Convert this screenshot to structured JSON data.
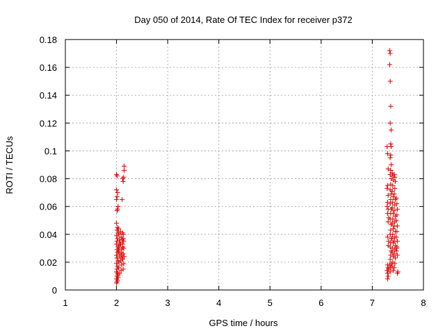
{
  "chart_data": {
    "type": "scatter",
    "title": "Day 050 of 2014, Rate Of TEC Index for receiver p372",
    "xlabel": "GPS time / hours",
    "ylabel": "ROTI / TECUs",
    "xlim": [
      1,
      8
    ],
    "ylim": [
      0,
      0.18
    ],
    "x_ticks": [
      1,
      2,
      3,
      4,
      5,
      6,
      7,
      8
    ],
    "y_ticks": [
      0,
      0.02,
      0.04,
      0.06,
      0.08,
      0.1,
      0.12,
      0.14,
      0.16,
      0.18
    ],
    "x_tick_labels": [
      "1",
      "2",
      "3",
      "4",
      "5",
      "6",
      "7",
      "8"
    ],
    "y_tick_labels": [
      "0",
      "0.02",
      "0.04",
      "0.06",
      "0.08",
      "0.1",
      "0.12",
      "0.14",
      "0.16",
      "0.18"
    ],
    "grid": true,
    "marker": "plus",
    "marker_color": "#e00000",
    "series": [
      {
        "points": [
          [
            2.0,
            0.083
          ],
          [
            2.01,
            0.082
          ],
          [
            2.0,
            0.072
          ],
          [
            2.02,
            0.07
          ],
          [
            2.01,
            0.067
          ],
          [
            2.0,
            0.065
          ],
          [
            2.03,
            0.06
          ],
          [
            2.02,
            0.058
          ],
          [
            2.01,
            0.057
          ],
          [
            2.0,
            0.048
          ],
          [
            2.02,
            0.045
          ],
          [
            2.01,
            0.043
          ],
          [
            2.03,
            0.041
          ],
          [
            2.0,
            0.039
          ],
          [
            2.02,
            0.037
          ],
          [
            2.01,
            0.035
          ],
          [
            2.0,
            0.033
          ],
          [
            2.03,
            0.031
          ],
          [
            2.01,
            0.029
          ],
          [
            2.02,
            0.027
          ],
          [
            2.0,
            0.025
          ],
          [
            2.01,
            0.023
          ],
          [
            2.03,
            0.021
          ],
          [
            2.0,
            0.019
          ],
          [
            2.02,
            0.017
          ],
          [
            2.01,
            0.015
          ],
          [
            2.0,
            0.013
          ],
          [
            2.03,
            0.011
          ],
          [
            2.01,
            0.01
          ],
          [
            2.0,
            0.008
          ],
          [
            2.02,
            0.007
          ],
          [
            2.01,
            0.006
          ],
          [
            2.0,
            0.005
          ],
          [
            2.03,
            0.009
          ],
          [
            2.02,
            0.012
          ],
          [
            2.04,
            0.044
          ],
          [
            2.05,
            0.04
          ],
          [
            2.06,
            0.036
          ],
          [
            2.05,
            0.032
          ],
          [
            2.04,
            0.028
          ],
          [
            2.06,
            0.024
          ],
          [
            2.05,
            0.02
          ],
          [
            2.04,
            0.016
          ],
          [
            2.06,
            0.012
          ],
          [
            2.05,
            0.03
          ],
          [
            2.07,
            0.034
          ],
          [
            2.06,
            0.026
          ],
          [
            2.08,
            0.042
          ],
          [
            2.09,
            0.038
          ],
          [
            2.08,
            0.033
          ],
          [
            2.1,
            0.029
          ],
          [
            2.09,
            0.025
          ],
          [
            2.08,
            0.021
          ],
          [
            2.1,
            0.018
          ],
          [
            2.09,
            0.014
          ],
          [
            2.11,
            0.023
          ],
          [
            2.1,
            0.027
          ],
          [
            2.12,
            0.031
          ],
          [
            2.12,
            0.041
          ],
          [
            2.13,
            0.037
          ],
          [
            2.12,
            0.033
          ],
          [
            2.14,
            0.03
          ],
          [
            2.13,
            0.026
          ],
          [
            2.12,
            0.022
          ],
          [
            2.14,
            0.019
          ],
          [
            2.13,
            0.015
          ],
          [
            2.15,
            0.024
          ],
          [
            2.14,
            0.035
          ],
          [
            2.13,
            0.04
          ],
          [
            2.11,
            0.065
          ],
          [
            2.13,
            0.078
          ],
          [
            2.12,
            0.08
          ],
          [
            2.14,
            0.081
          ],
          [
            2.15,
            0.086
          ],
          [
            2.15,
            0.089
          ],
          [
            2.11,
            0.036
          ],
          [
            7.29,
            0.103
          ],
          [
            7.3,
            0.098
          ],
          [
            7.31,
            0.087
          ],
          [
            7.3,
            0.075
          ],
          [
            7.29,
            0.073
          ],
          [
            7.31,
            0.068
          ],
          [
            7.3,
            0.063
          ],
          [
            7.29,
            0.06
          ],
          [
            7.31,
            0.058
          ],
          [
            7.3,
            0.055
          ],
          [
            7.32,
            0.052
          ],
          [
            7.31,
            0.049
          ],
          [
            7.3,
            0.038
          ],
          [
            7.32,
            0.035
          ],
          [
            7.31,
            0.032
          ],
          [
            7.3,
            0.018
          ],
          [
            7.31,
            0.016
          ],
          [
            7.29,
            0.014
          ],
          [
            7.3,
            0.012
          ],
          [
            7.31,
            0.01
          ],
          [
            7.3,
            0.008
          ],
          [
            7.32,
            0.015
          ],
          [
            7.34,
            0.172
          ],
          [
            7.35,
            0.17
          ],
          [
            7.34,
            0.162
          ],
          [
            7.35,
            0.15
          ],
          [
            7.36,
            0.132
          ],
          [
            7.35,
            0.12
          ],
          [
            7.37,
            0.115
          ],
          [
            7.36,
            0.105
          ],
          [
            7.37,
            0.103
          ],
          [
            7.36,
            0.097
          ],
          [
            7.35,
            0.095
          ],
          [
            7.37,
            0.09
          ],
          [
            7.36,
            0.086
          ],
          [
            7.35,
            0.083
          ],
          [
            7.37,
            0.08
          ],
          [
            7.36,
            0.076
          ],
          [
            7.35,
            0.072
          ],
          [
            7.37,
            0.069
          ],
          [
            7.36,
            0.065
          ],
          [
            7.35,
            0.062
          ],
          [
            7.37,
            0.058
          ],
          [
            7.36,
            0.055
          ],
          [
            7.35,
            0.051
          ],
          [
            7.37,
            0.047
          ],
          [
            7.36,
            0.043
          ],
          [
            7.35,
            0.04
          ],
          [
            7.37,
            0.037
          ],
          [
            7.36,
            0.034
          ],
          [
            7.35,
            0.031
          ],
          [
            7.37,
            0.028
          ],
          [
            7.36,
            0.025
          ],
          [
            7.35,
            0.022
          ],
          [
            7.37,
            0.019
          ],
          [
            7.36,
            0.016
          ],
          [
            7.35,
            0.013
          ],
          [
            7.34,
            0.018
          ],
          [
            7.39,
            0.084
          ],
          [
            7.4,
            0.082
          ],
          [
            7.41,
            0.079
          ],
          [
            7.4,
            0.075
          ],
          [
            7.39,
            0.071
          ],
          [
            7.41,
            0.067
          ],
          [
            7.4,
            0.063
          ],
          [
            7.39,
            0.059
          ],
          [
            7.41,
            0.055
          ],
          [
            7.4,
            0.051
          ],
          [
            7.39,
            0.048
          ],
          [
            7.41,
            0.044
          ],
          [
            7.4,
            0.04
          ],
          [
            7.39,
            0.037
          ],
          [
            7.41,
            0.034
          ],
          [
            7.4,
            0.03
          ],
          [
            7.39,
            0.027
          ],
          [
            7.41,
            0.024
          ],
          [
            7.4,
            0.02
          ],
          [
            7.39,
            0.017
          ],
          [
            7.41,
            0.014
          ],
          [
            7.43,
            0.083
          ],
          [
            7.44,
            0.081
          ],
          [
            7.45,
            0.078
          ],
          [
            7.44,
            0.073
          ],
          [
            7.43,
            0.069
          ],
          [
            7.45,
            0.065
          ],
          [
            7.44,
            0.061
          ],
          [
            7.43,
            0.057
          ],
          [
            7.45,
            0.053
          ],
          [
            7.44,
            0.049
          ],
          [
            7.43,
            0.046
          ],
          [
            7.45,
            0.042
          ],
          [
            7.44,
            0.038
          ],
          [
            7.43,
            0.035
          ],
          [
            7.45,
            0.032
          ],
          [
            7.44,
            0.029
          ],
          [
            7.43,
            0.026
          ],
          [
            7.45,
            0.023
          ],
          [
            7.44,
            0.019
          ],
          [
            7.43,
            0.016
          ],
          [
            7.47,
            0.066
          ],
          [
            7.48,
            0.062
          ],
          [
            7.49,
            0.058
          ],
          [
            7.48,
            0.054
          ],
          [
            7.47,
            0.05
          ],
          [
            7.49,
            0.046
          ],
          [
            7.48,
            0.042
          ],
          [
            7.47,
            0.038
          ],
          [
            7.49,
            0.035
          ],
          [
            7.48,
            0.031
          ],
          [
            7.47,
            0.028
          ],
          [
            7.49,
            0.025
          ],
          [
            7.5,
            0.013
          ],
          [
            7.49,
            0.012
          ],
          [
            7.48,
            0.03
          ]
        ]
      }
    ]
  }
}
